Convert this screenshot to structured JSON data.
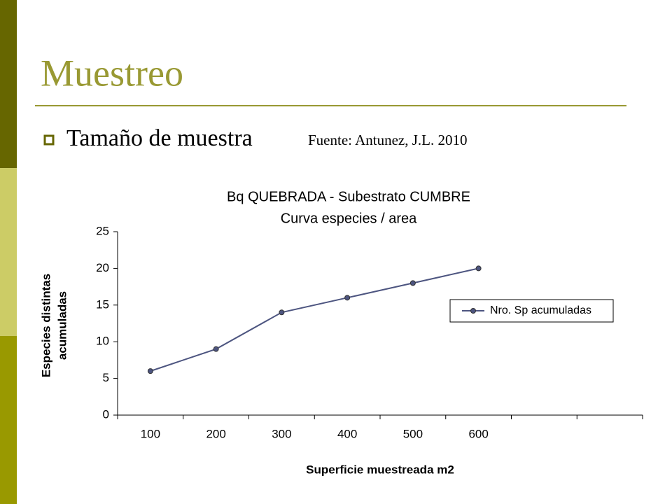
{
  "slide": {
    "title": "Muestreo",
    "bullet": "Tamaño de muestra",
    "source": "Fuente: Antunez, J.L. 2010"
  },
  "chart_data": {
    "type": "line",
    "title": [
      "Bq QUEBRADA - Subestrato CUMBRE",
      "Curva especies / area"
    ],
    "xlabel": "Superficie muestreada m2",
    "ylabel": [
      "Especies distintas",
      "acumuladas"
    ],
    "categories": [
      "100",
      "200",
      "300",
      "400",
      "500",
      "600",
      null,
      null
    ],
    "series": [
      {
        "name": "Nro. Sp acumuladas",
        "color": "#4d5580",
        "values": [
          6,
          9,
          14,
          16,
          18,
          20,
          null,
          null
        ]
      }
    ],
    "ylim": [
      0,
      25
    ],
    "yticks": [
      0,
      5,
      10,
      15,
      20,
      25
    ],
    "grid": false,
    "legend": "right"
  }
}
